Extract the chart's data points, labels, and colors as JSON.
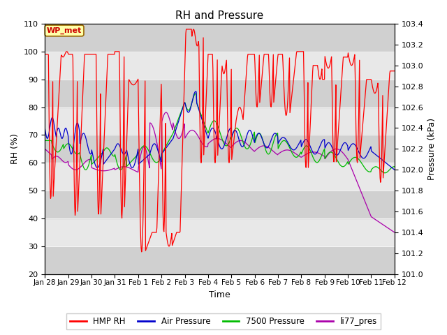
{
  "title": "RH and Pressure",
  "xlabel": "Time",
  "ylabel_left": "RH (%)",
  "ylabel_right": "Pressure (kPa)",
  "ylim_left": [
    20,
    110
  ],
  "ylim_right": [
    101.0,
    103.4
  ],
  "yticks_left": [
    20,
    30,
    40,
    50,
    60,
    70,
    80,
    90,
    100,
    110
  ],
  "yticks_right": [
    101.0,
    101.2,
    101.4,
    101.6,
    101.8,
    102.0,
    102.2,
    102.4,
    102.6,
    102.8,
    103.0,
    103.2,
    103.4
  ],
  "xtick_labels": [
    "Jan 28",
    "Jan 29",
    "Jan 30",
    "Jan 31",
    "Feb 1",
    "Feb 2",
    "Feb 3",
    "Feb 4",
    "Feb 5",
    "Feb 6",
    "Feb 7",
    "Feb 8",
    "Feb 9",
    "Feb 10",
    "Feb 11",
    "Feb 12"
  ],
  "colors": {
    "HMP_RH": "#ff0000",
    "Air_Pressure": "#0000cc",
    "Pressure_7500": "#00bb00",
    "li77_pres": "#aa00aa"
  },
  "legend_label": "WP_met",
  "fig_bg_color": "#ffffff",
  "plot_bg_color": "#e8e8e8",
  "stripe_color": "#d0d0d0",
  "title_fontsize": 11,
  "axis_fontsize": 9,
  "tick_fontsize": 8,
  "legend_fontsize": 8.5
}
